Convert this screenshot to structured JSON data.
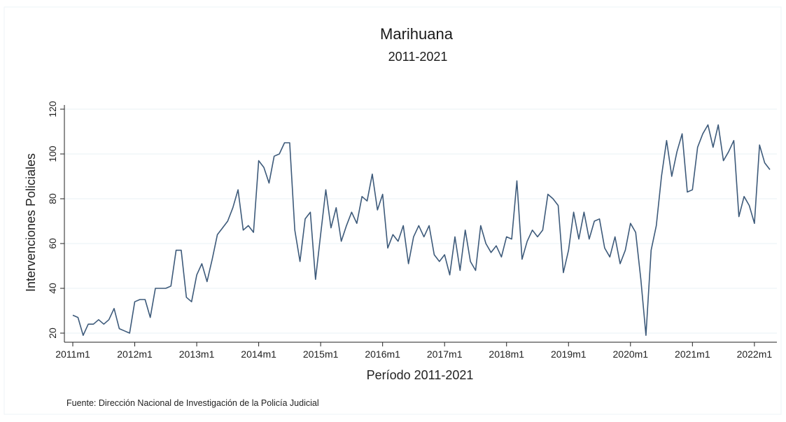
{
  "chart_data": {
    "type": "line",
    "title": "Marihuana",
    "subtitle": "2011-2021",
    "xlabel": "Período 2011-2021",
    "ylabel": "Intervenciones Policiales",
    "ylim": [
      17,
      123
    ],
    "yticks": [
      20,
      40,
      60,
      80,
      100,
      120
    ],
    "xtick_labels": [
      "2011m1",
      "2012m1",
      "2013m1",
      "2014m1",
      "2015m1",
      "2016m1",
      "2017m1",
      "2018m1",
      "2019m1",
      "2020m1",
      "2021m1",
      "2022m1"
    ],
    "x_start": "2011m1",
    "x_end": "2022m4",
    "grid": "horizontal",
    "line_color": "#3d5a7a",
    "series": [
      {
        "values": [
          28,
          27,
          19,
          24,
          24,
          26,
          24,
          26,
          31,
          22,
          21,
          20,
          34,
          35,
          35,
          27,
          40,
          40,
          40,
          41,
          57,
          57,
          36,
          34,
          46,
          51,
          43,
          53,
          64,
          67,
          70,
          76,
          84,
          66,
          68,
          65,
          97,
          94,
          87,
          99,
          100,
          105,
          105,
          66,
          52,
          71,
          74,
          44,
          64,
          84,
          67,
          76,
          61,
          68,
          74,
          69,
          81,
          79,
          91,
          75,
          82,
          58,
          64,
          61,
          68,
          51,
          63,
          68,
          63,
          68,
          55,
          52,
          55,
          46,
          63,
          48,
          66,
          52,
          48,
          68,
          60,
          56,
          59,
          54,
          63,
          62,
          88,
          53,
          61,
          66,
          63,
          66,
          82,
          80,
          77,
          47,
          57,
          74,
          62,
          74,
          62,
          70,
          71,
          58,
          54,
          63,
          51,
          57,
          69,
          65,
          44,
          19,
          57,
          68,
          90,
          106,
          90,
          101,
          109,
          83,
          84,
          103,
          109,
          113,
          103,
          113,
          97,
          101,
          106,
          72,
          81,
          77,
          69,
          104,
          96,
          93
        ]
      }
    ],
    "source": "Fuente: Dirección Nacional de Investigación de la Policía Judicial"
  }
}
